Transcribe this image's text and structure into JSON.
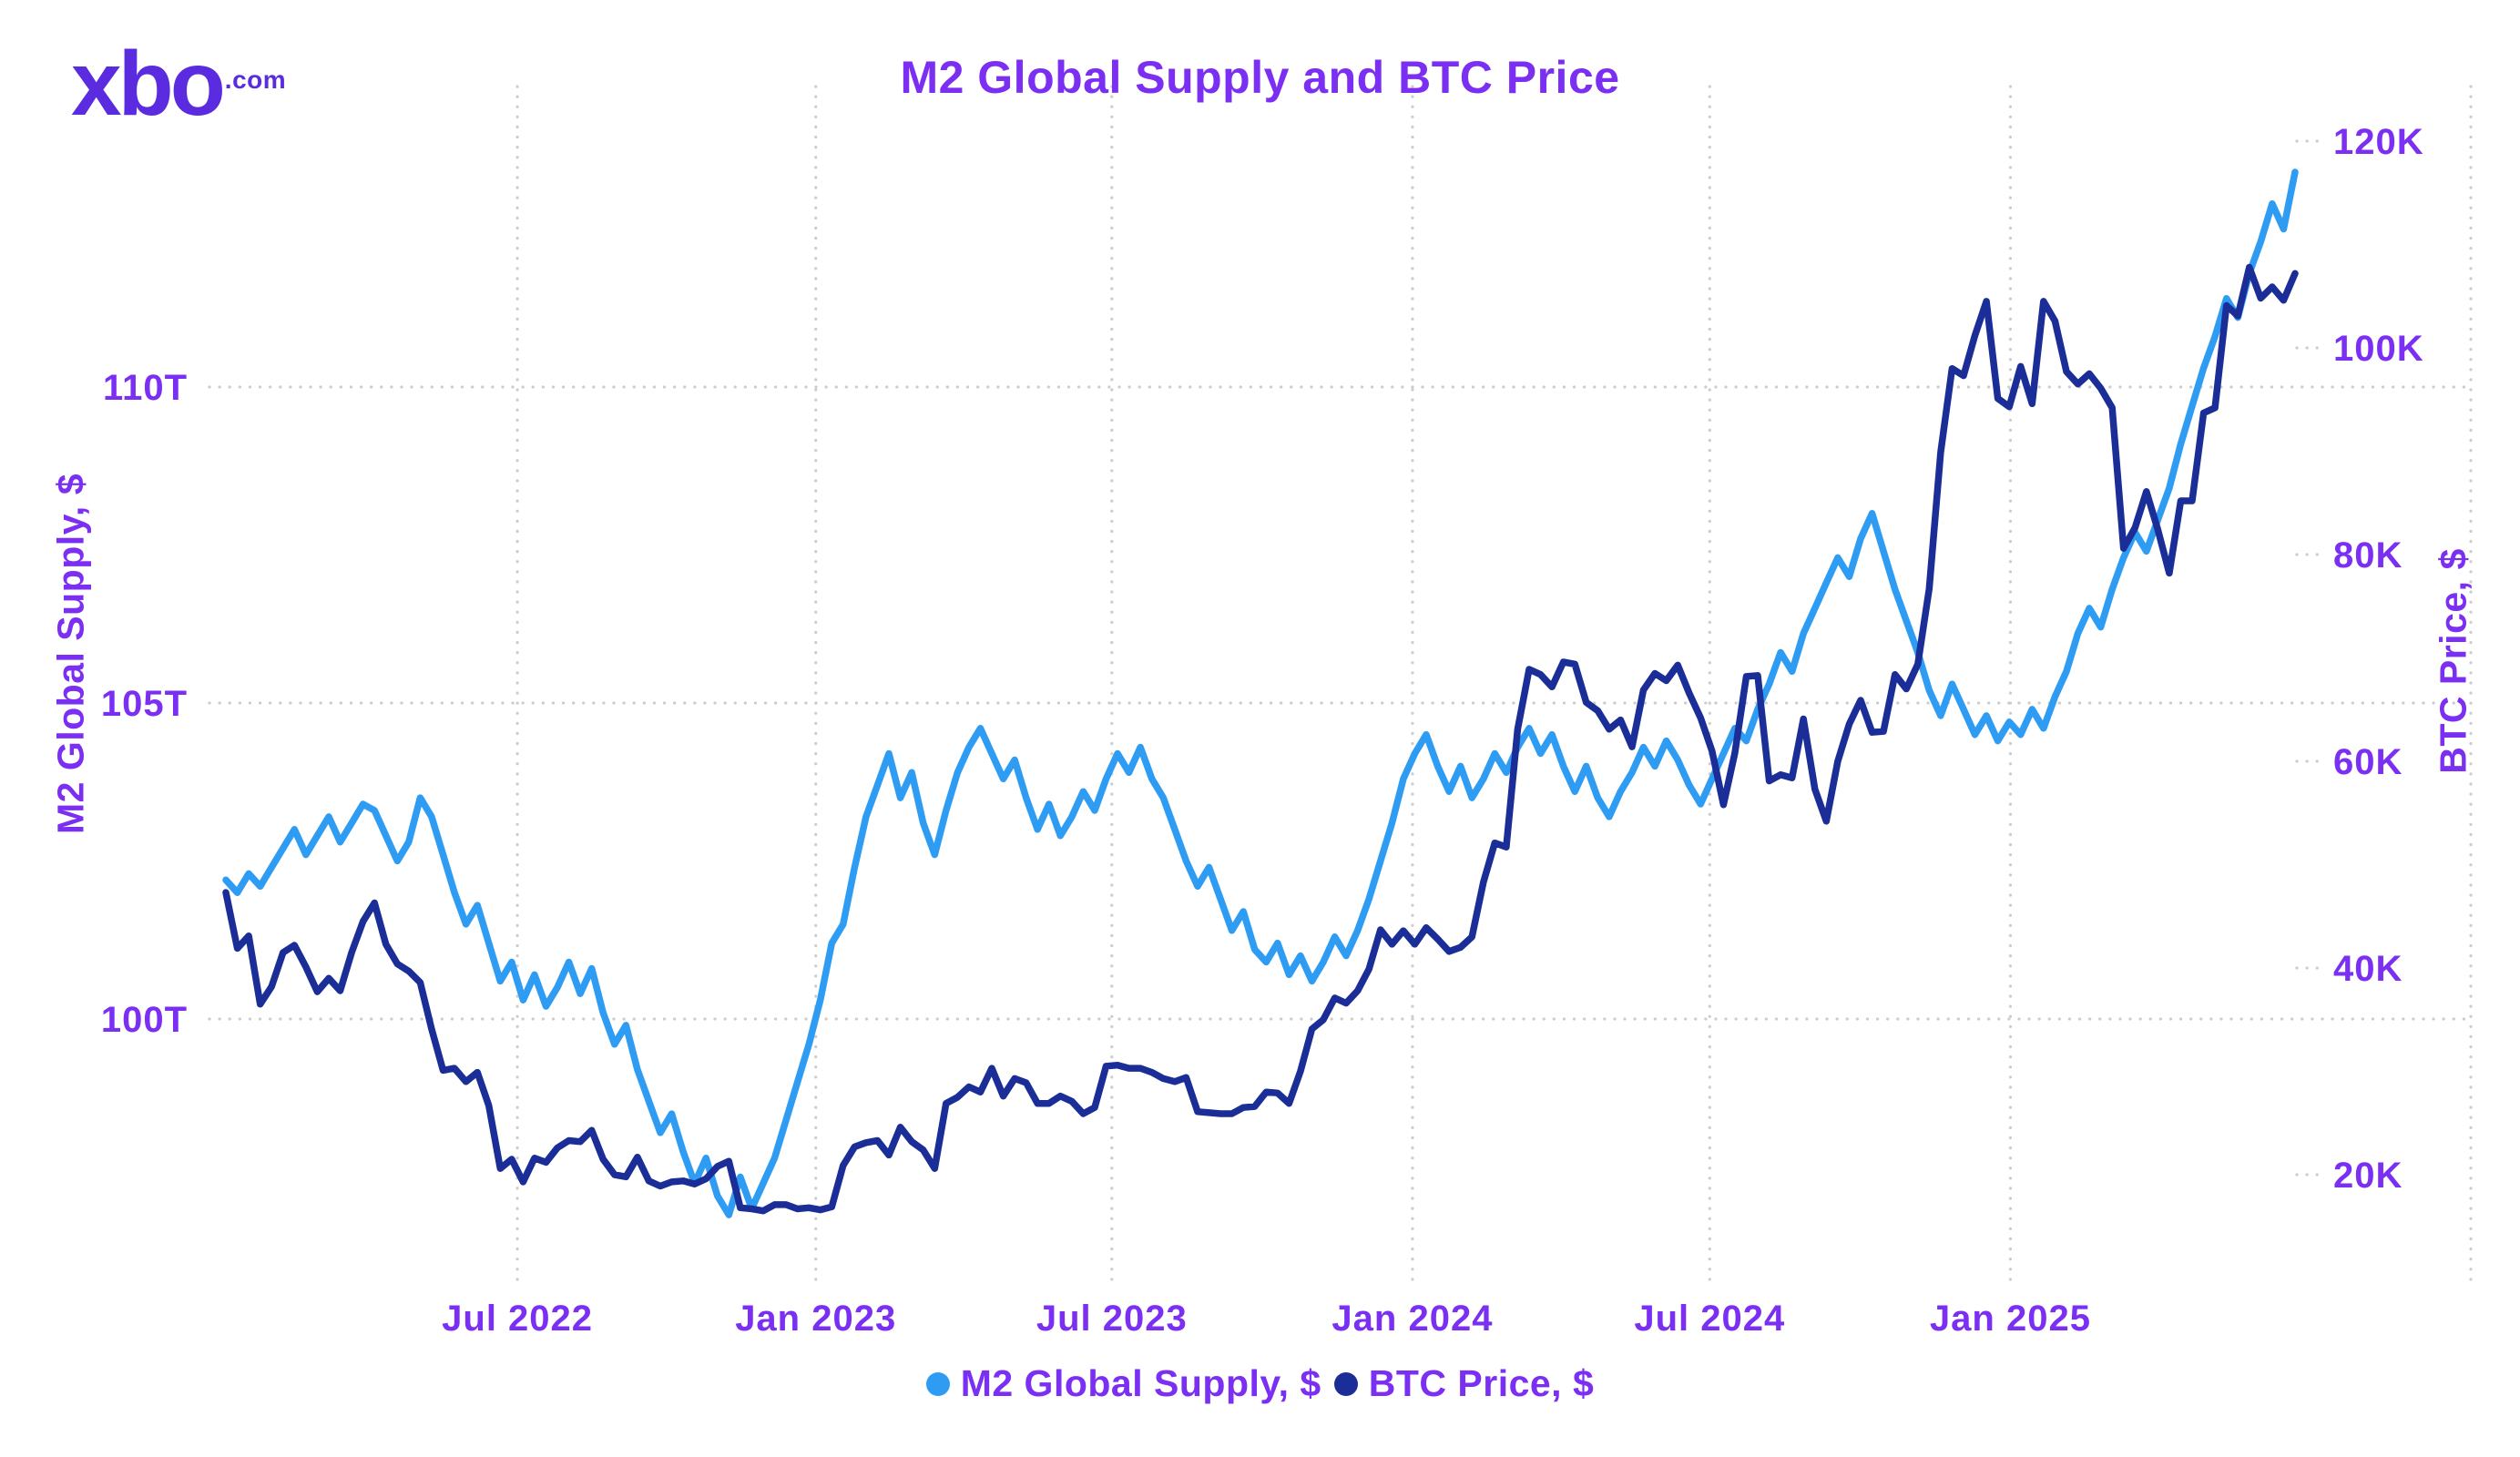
{
  "logo": {
    "text": "xbo",
    "suffix": ".com"
  },
  "title": "M2 Global Supply and BTC Price",
  "colors": {
    "text_purple": "#7B2FF2",
    "logo_purple": "#5B2BE0",
    "m2_line": "#2F9CF3",
    "btc_line": "#1B2D96",
    "gridline": "#CDCDCD",
    "background": "#FFFFFF"
  },
  "axes": {
    "left": {
      "title": "M2 Global Supply, $",
      "ticks": [
        {
          "label": "110T",
          "value": 110
        },
        {
          "label": "105T",
          "value": 105
        },
        {
          "label": "100T",
          "value": 100
        }
      ]
    },
    "right": {
      "title": "BTC Price, $",
      "ticks": [
        {
          "label": "120K",
          "value": 120
        },
        {
          "label": "100K",
          "value": 100
        },
        {
          "label": "80K",
          "value": 80
        },
        {
          "label": "60K",
          "value": 60
        },
        {
          "label": "40K",
          "value": 40
        },
        {
          "label": "20K",
          "value": 20
        }
      ]
    },
    "x": {
      "ticks": [
        {
          "label": "Jul 2022",
          "week": 25.5
        },
        {
          "label": "Jan 2023",
          "week": 51.6
        },
        {
          "label": "Jul 2023",
          "week": 77.5
        },
        {
          "label": "Jan 2024",
          "week": 103.8
        },
        {
          "label": "Jul 2024",
          "week": 129.8
        },
        {
          "label": "Jan 2025",
          "week": 156.1
        }
      ]
    }
  },
  "legend": {
    "items": [
      {
        "label": "M2 Global Supply, $",
        "color": "#2F9CF3"
      },
      {
        "label": "BTC Price, $",
        "color": "#1B2D96"
      }
    ]
  },
  "chart_data": {
    "type": "line",
    "title": "M2 Global Supply and BTC Price",
    "x_interval": "weekly",
    "x_range": [
      "2022-01",
      "2025-06"
    ],
    "x_tick_labels": [
      "Jul 2022",
      "Jan 2023",
      "Jul 2023",
      "Jan 2024",
      "Jul 2024",
      "Jan 2025"
    ],
    "grid": "dotted",
    "legend_position": "bottom",
    "series": [
      {
        "name": "M2 Global Supply, $",
        "axis": "left",
        "unit": "trillion USD",
        "color": "#2F9CF3",
        "ylim": [
          96,
          114.8
        ],
        "ytick_labels": [
          "100T",
          "105T",
          "110T"
        ],
        "values": [
          102.2,
          102.0,
          102.3,
          102.1,
          102.4,
          102.7,
          103.0,
          102.6,
          102.9,
          103.2,
          102.8,
          103.1,
          103.4,
          103.3,
          102.9,
          102.5,
          102.8,
          103.5,
          103.2,
          102.6,
          102.0,
          101.5,
          101.8,
          101.2,
          100.6,
          100.9,
          100.3,
          100.7,
          100.2,
          100.5,
          100.9,
          100.4,
          100.8,
          100.1,
          99.6,
          99.9,
          99.2,
          98.7,
          98.2,
          98.5,
          97.9,
          97.4,
          97.8,
          97.2,
          96.9,
          97.5,
          97.0,
          97.4,
          97.8,
          98.4,
          99.0,
          99.6,
          100.3,
          101.2,
          101.5,
          102.4,
          103.2,
          103.7,
          104.2,
          103.5,
          103.9,
          103.1,
          102.6,
          103.3,
          103.9,
          104.3,
          104.6,
          104.2,
          103.8,
          104.1,
          103.5,
          103.0,
          103.4,
          102.9,
          103.2,
          103.6,
          103.3,
          103.8,
          104.2,
          103.9,
          104.3,
          103.8,
          103.5,
          103.0,
          102.5,
          102.1,
          102.4,
          101.9,
          101.4,
          101.7,
          101.1,
          100.9,
          101.2,
          100.7,
          101.0,
          100.6,
          100.9,
          101.3,
          101.0,
          101.4,
          101.9,
          102.5,
          103.1,
          103.8,
          104.2,
          104.5,
          104.0,
          103.6,
          104.0,
          103.5,
          103.8,
          104.2,
          103.9,
          104.3,
          104.6,
          104.2,
          104.5,
          104.0,
          103.6,
          104.0,
          103.5,
          103.2,
          103.6,
          103.9,
          104.3,
          104.0,
          104.4,
          104.1,
          103.7,
          103.4,
          103.8,
          104.2,
          104.6,
          104.4,
          104.9,
          105.3,
          105.8,
          105.5,
          106.1,
          106.5,
          106.9,
          107.3,
          107.0,
          107.6,
          108.0,
          107.4,
          106.8,
          106.3,
          105.8,
          105.2,
          104.8,
          105.3,
          104.9,
          104.5,
          104.8,
          104.4,
          104.7,
          104.5,
          104.9,
          104.6,
          105.1,
          105.5,
          106.1,
          106.5,
          106.2,
          106.8,
          107.3,
          107.7,
          107.4,
          107.9,
          108.4,
          109.1,
          109.7,
          110.3,
          110.8,
          111.4,
          111.1,
          111.8,
          112.3,
          112.9,
          112.5,
          113.4
        ]
      },
      {
        "name": "BTC Price, $",
        "axis": "right",
        "unit": "thousand USD",
        "color": "#1B2D96",
        "ylim": [
          12,
          126
        ],
        "ytick_labels": [
          "20K",
          "40K",
          "60K",
          "80K",
          "100K",
          "120K"
        ],
        "values": [
          47.3,
          41.9,
          43.1,
          36.5,
          38.2,
          41.5,
          42.2,
          40.1,
          37.7,
          39.0,
          37.8,
          41.5,
          44.5,
          46.3,
          42.3,
          40.4,
          39.7,
          38.6,
          34.1,
          30.1,
          30.3,
          29.0,
          29.9,
          26.7,
          20.6,
          21.5,
          19.3,
          21.6,
          21.2,
          22.6,
          23.3,
          23.2,
          24.3,
          21.5,
          20.0,
          19.8,
          21.7,
          19.4,
          18.9,
          19.3,
          19.4,
          19.1,
          19.6,
          20.8,
          21.3,
          16.8,
          16.7,
          16.5,
          17.1,
          17.1,
          16.7,
          16.8,
          16.6,
          16.9,
          20.9,
          22.7,
          23.1,
          23.3,
          21.9,
          24.6,
          23.2,
          22.4,
          20.6,
          26.9,
          27.5,
          28.5,
          28.0,
          30.3,
          27.6,
          29.3,
          28.9,
          26.9,
          26.9,
          27.6,
          27.1,
          25.9,
          26.5,
          30.5,
          30.6,
          30.3,
          30.3,
          29.9,
          29.3,
          29.0,
          29.4,
          26.1,
          26.0,
          25.9,
          25.9,
          26.5,
          26.6,
          28.0,
          27.9,
          26.9,
          30.0,
          34.1,
          35.0,
          37.1,
          36.6,
          37.8,
          39.9,
          43.7,
          42.3,
          43.6,
          42.3,
          43.9,
          42.8,
          41.6,
          42.0,
          43.0,
          48.3,
          52.1,
          51.7,
          63.1,
          68.9,
          68.4,
          67.2,
          69.6,
          69.4,
          65.7,
          64.9,
          63.1,
          64.0,
          61.4,
          66.9,
          68.5,
          67.8,
          69.3,
          66.6,
          64.2,
          61.0,
          55.8,
          60.8,
          68.2,
          68.3,
          58.1,
          58.7,
          58.4,
          64.1,
          57.3,
          54.2,
          60.0,
          63.6,
          65.9,
          62.8,
          62.9,
          68.4,
          67.0,
          69.4,
          76.7,
          89.9,
          98.0,
          97.3,
          101.2,
          104.5,
          95.1,
          94.3,
          98.2,
          94.6,
          104.5,
          102.6,
          97.7,
          96.5,
          97.5,
          96.1,
          94.2,
          80.6,
          82.6,
          86.1,
          82.4,
          78.2,
          85.2,
          85.2,
          93.7,
          94.2,
          104.1,
          103.1,
          107.8,
          104.8,
          105.9,
          104.6,
          107.2
        ]
      }
    ]
  }
}
